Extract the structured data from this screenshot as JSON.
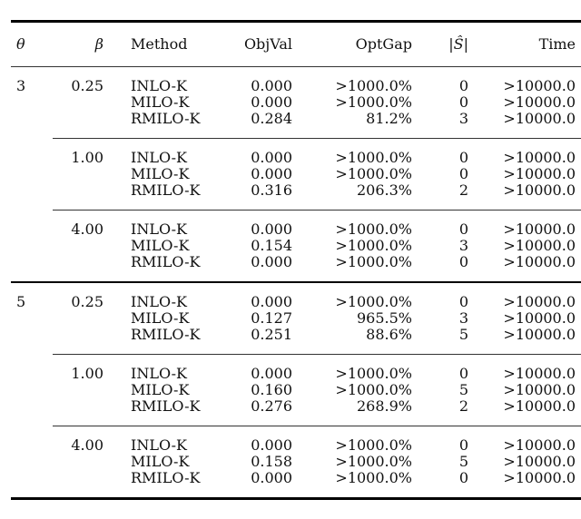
{
  "table": {
    "headers": [
      "θ",
      "β",
      "Method",
      "ObjVal",
      "OptGap",
      "|Ŝ|",
      "Time"
    ],
    "groups": [
      {
        "theta": "3",
        "blocks": [
          {
            "beta": "0.25",
            "rows": [
              [
                "INLO-K",
                "0.000",
                ">1000.0%",
                "0",
                ">10000.0"
              ],
              [
                "MILO-K",
                "0.000",
                ">1000.0%",
                "0",
                ">10000.0"
              ],
              [
                "RMILO-K",
                "0.284",
                "81.2%",
                "3",
                ">10000.0"
              ]
            ]
          },
          {
            "beta": "1.00",
            "rows": [
              [
                "INLO-K",
                "0.000",
                ">1000.0%",
                "0",
                ">10000.0"
              ],
              [
                "MILO-K",
                "0.000",
                ">1000.0%",
                "0",
                ">10000.0"
              ],
              [
                "RMILO-K",
                "0.316",
                "206.3%",
                "2",
                ">10000.0"
              ]
            ]
          },
          {
            "beta": "4.00",
            "rows": [
              [
                "INLO-K",
                "0.000",
                ">1000.0%",
                "0",
                ">10000.0"
              ],
              [
                "MILO-K",
                "0.154",
                ">1000.0%",
                "3",
                ">10000.0"
              ],
              [
                "RMILO-K",
                "0.000",
                ">1000.0%",
                "0",
                ">10000.0"
              ]
            ]
          }
        ]
      },
      {
        "theta": "5",
        "blocks": [
          {
            "beta": "0.25",
            "rows": [
              [
                "INLO-K",
                "0.000",
                ">1000.0%",
                "0",
                ">10000.0"
              ],
              [
                "MILO-K",
                "0.127",
                "965.5%",
                "3",
                ">10000.0"
              ],
              [
                "RMILO-K",
                "0.251",
                "88.6%",
                "5",
                ">10000.0"
              ]
            ]
          },
          {
            "beta": "1.00",
            "rows": [
              [
                "INLO-K",
                "0.000",
                ">1000.0%",
                "0",
                ">10000.0"
              ],
              [
                "MILO-K",
                "0.160",
                ">1000.0%",
                "5",
                ">10000.0"
              ],
              [
                "RMILO-K",
                "0.276",
                "268.9%",
                "2",
                ">10000.0"
              ]
            ]
          },
          {
            "beta": "4.00",
            "rows": [
              [
                "INLO-K",
                "0.000",
                ">1000.0%",
                "0",
                ">10000.0"
              ],
              [
                "MILO-K",
                "0.158",
                ">1000.0%",
                "5",
                ">10000.0"
              ],
              [
                "RMILO-K",
                "0.000",
                ">1000.0%",
                "0",
                ">10000.0"
              ]
            ]
          }
        ]
      }
    ]
  }
}
